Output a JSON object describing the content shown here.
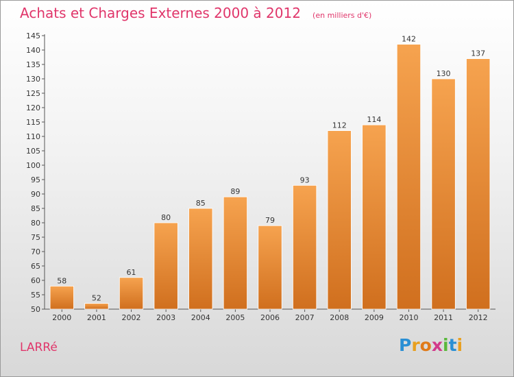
{
  "title": "Achats et Charges Externes 2000 à 2012",
  "subtitle": "(en milliers d'€)",
  "commune": "LARRé",
  "logo": {
    "text": "Proxiti",
    "letters": [
      {
        "char": "P",
        "color": "#2a8fd4"
      },
      {
        "char": "r",
        "color": "#e8a020"
      },
      {
        "char": "o",
        "color": "#e07a1a"
      },
      {
        "char": "x",
        "color": "#d23a8a"
      },
      {
        "char": "i",
        "color": "#5ab83c"
      },
      {
        "char": "t",
        "color": "#2a8fd4"
      },
      {
        "char": "i",
        "color": "#e8a020"
      }
    ]
  },
  "colors": {
    "title": "#e0356a",
    "bar_light": "#f6a34f",
    "bar_dark": "#d06f1e",
    "axis": "#555555",
    "text": "#333333"
  },
  "chart_data": {
    "type": "bar",
    "title": "Achats et Charges Externes 2000 à 2012",
    "subtitle": "(en milliers d'€)",
    "categories": [
      "2000",
      "2001",
      "2002",
      "2003",
      "2004",
      "2005",
      "2006",
      "2007",
      "2008",
      "2009",
      "2010",
      "2011",
      "2012"
    ],
    "values": [
      58,
      52,
      61,
      80,
      85,
      89,
      79,
      93,
      112,
      114,
      142,
      130,
      137
    ],
    "ylim": [
      50,
      145
    ],
    "yticks": [
      50,
      55,
      60,
      65,
      70,
      75,
      80,
      85,
      90,
      95,
      100,
      105,
      110,
      115,
      120,
      125,
      130,
      135,
      140,
      145
    ],
    "grid": false,
    "data_labels": true
  }
}
